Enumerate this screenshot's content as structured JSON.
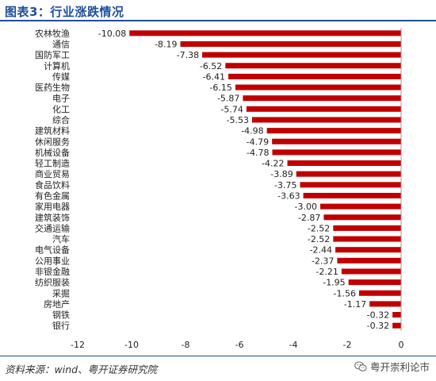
{
  "header": {
    "title": "图表3：行业涨跌情况"
  },
  "footer": {
    "source": "资料来源：wind、粤开证券研究院",
    "watermark_text": "粤开崇利论市",
    "watermark_icon": "wechat-icon"
  },
  "colors": {
    "bar": "#c00000",
    "title": "#1f4e9a",
    "axis": "#999999"
  },
  "chart_data": {
    "type": "bar",
    "orientation": "horizontal",
    "title": "",
    "xlabel": "",
    "ylabel": "",
    "xlim": [
      -12,
      0
    ],
    "xticks": [
      -12,
      -10,
      -8,
      -6,
      -4,
      -2,
      0
    ],
    "grid": false,
    "categories": [
      "农林牧渔",
      "通信",
      "国防军工",
      "计算机",
      "传媒",
      "医药生物",
      "电子",
      "化工",
      "综合",
      "建筑材料",
      "休闲服务",
      "机械设备",
      "轻工制造",
      "商业贸易",
      "食品饮料",
      "有色金属",
      "家用电器",
      "建筑装饰",
      "交通运输",
      "汽车",
      "电气设备",
      "公用事业",
      "非银金融",
      "纺织服装",
      "采掘",
      "房地产",
      "钢铁",
      "银行"
    ],
    "values": [
      -10.08,
      -8.19,
      -7.38,
      -6.52,
      -6.41,
      -6.15,
      -5.87,
      -5.74,
      -5.53,
      -4.98,
      -4.79,
      -4.78,
      -4.22,
      -3.89,
      -3.75,
      -3.63,
      -3.0,
      -2.87,
      -2.52,
      -2.52,
      -2.44,
      -2.37,
      -2.21,
      -1.95,
      -1.56,
      -1.17,
      -0.32,
      -0.32
    ],
    "value_labels": [
      "-10.08",
      "-8.19",
      "-7.38",
      "-6.52",
      "-6.41",
      "-6.15",
      "-5.87",
      "-5.74",
      "-5.53",
      "-4.98",
      "-4.79",
      "-4.78",
      "-4.22",
      "-3.89",
      "-3.75",
      "-3.63",
      "-3.00",
      "-2.87",
      "-2.52",
      "-2.52",
      "-2.44",
      "-2.37",
      "-2.21",
      "-1.95",
      "-1.56",
      "-1.17",
      "-0.32",
      "-0.32"
    ]
  }
}
